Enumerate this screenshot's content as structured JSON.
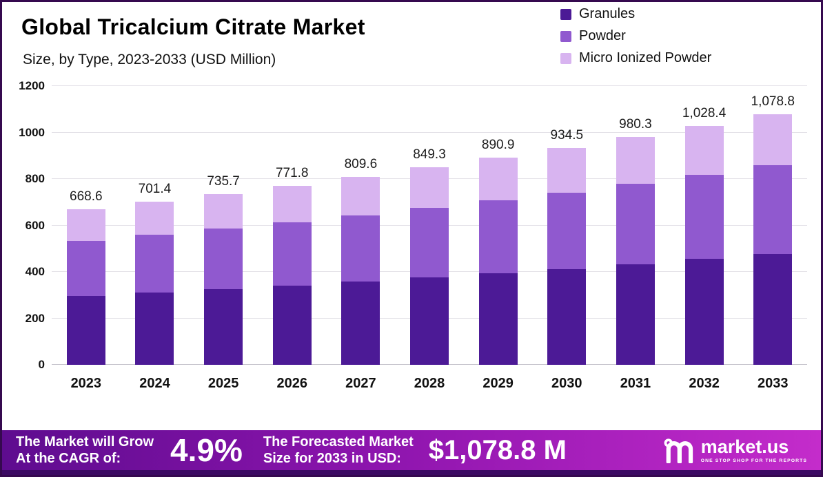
{
  "title": "Global Tricalcium Citrate Market",
  "subtitle": "Size, by Type, 2023-2033 (USD Million)",
  "chart_data": {
    "type": "bar",
    "stacked": true,
    "title": "Global Tricalcium Citrate Market Size, by Type, 2023-2033 (USD Million)",
    "categories": [
      "2023",
      "2024",
      "2025",
      "2026",
      "2027",
      "2028",
      "2029",
      "2030",
      "2031",
      "2032",
      "2033"
    ],
    "series": [
      {
        "name": "Granules",
        "color": "#4c1a96",
        "values": [
          296,
          311,
          326,
          342,
          358,
          376,
          394,
          413,
          434,
          455,
          478
        ]
      },
      {
        "name": "Powder",
        "color": "#9059cf",
        "values": [
          238,
          248,
          260,
          272,
          286,
          299,
          314,
          329,
          345,
          362,
          380
        ]
      },
      {
        "name": "Micro Ionized Powder",
        "color": "#d8b4f0",
        "values": [
          134.6,
          142.4,
          149.7,
          157.8,
          165.6,
          174.3,
          182.9,
          192.5,
          201.3,
          211.4,
          220.8
        ]
      }
    ],
    "totals": [
      668.6,
      701.4,
      735.7,
      771.8,
      809.6,
      849.3,
      890.9,
      934.5,
      980.3,
      1028.4,
      1078.8
    ],
    "total_labels": [
      "668.6",
      "701.4",
      "735.7",
      "771.8",
      "809.6",
      "849.3",
      "890.9",
      "934.5",
      "980.3",
      "1,028.4",
      "1,078.8"
    ],
    "xlabel": "",
    "ylabel": "",
    "ylim": [
      0,
      1200
    ],
    "yticks": [
      0,
      200,
      400,
      600,
      800,
      1000,
      1200
    ],
    "grid": true,
    "legend_position": "top-right"
  },
  "banner": {
    "cagr_label_line1": "The Market will Grow",
    "cagr_label_line2": "At the CAGR of:",
    "cagr_value": "4.9%",
    "forecast_label_line1": "The Forecasted Market",
    "forecast_label_line2": "Size for 2033 in USD:",
    "forecast_value": "$1,078.8 M",
    "brand": "market.us",
    "brand_tagline": "ONE STOP SHOP FOR THE REPORTS"
  },
  "colors": {
    "granules": "#4c1a96",
    "powder": "#9059cf",
    "micro_ionized_powder": "#d8b4f0",
    "banner_gradient_start": "#5e0c8f",
    "banner_gradient_end": "#c42ccb",
    "frame_border": "#35094f"
  }
}
